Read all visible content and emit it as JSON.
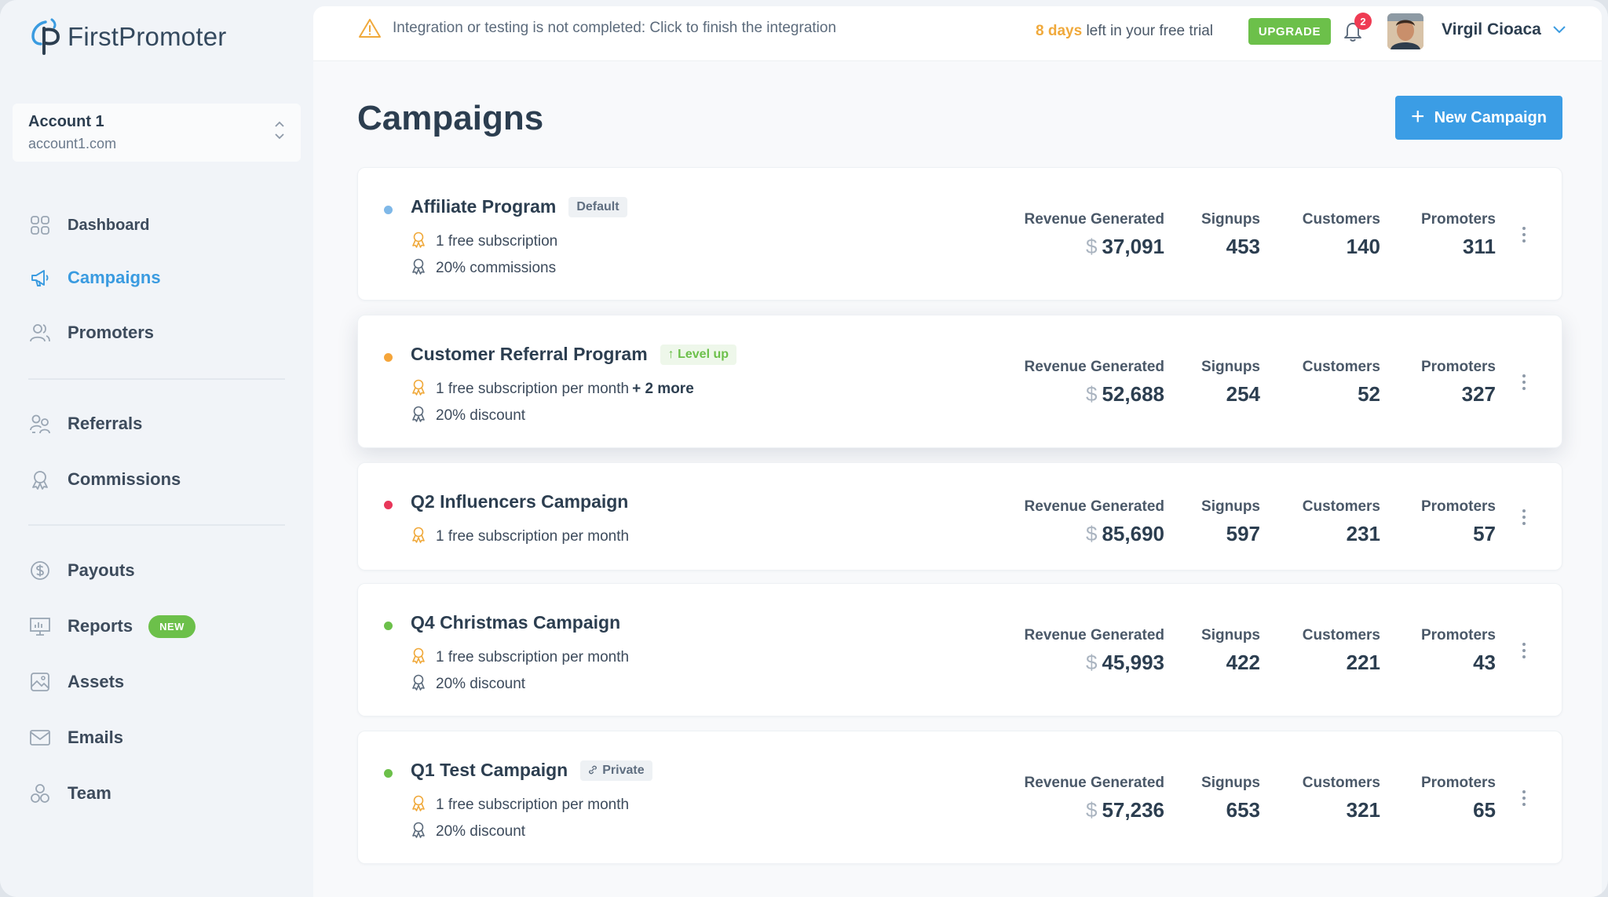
{
  "app": {
    "brand": "FirstPromoter"
  },
  "account": {
    "name": "Account 1",
    "domain": "account1.com"
  },
  "nav": {
    "dashboard": "Dashboard",
    "campaigns": "Campaigns",
    "promoters": "Promoters",
    "referrals": "Referrals",
    "commissions": "Commissions",
    "payouts": "Payouts",
    "reports": "Reports",
    "reports_badge": "NEW",
    "assets": "Assets",
    "emails": "Emails",
    "team": "Team"
  },
  "topbar": {
    "warning": "Integration or testing is not completed: Click to finish the integration",
    "trial_days": "8 days",
    "trial_rest": "left in your free trial",
    "upgrade": "UPGRADE",
    "notif_count": "2",
    "user_name": "Virgil Cioaca"
  },
  "page": {
    "title": "Campaigns",
    "new_button": "New Campaign"
  },
  "stat_labels": {
    "revenue": "Revenue Generated",
    "signups": "Signups",
    "customers": "Customers",
    "promoters": "Promoters"
  },
  "currency": "$",
  "campaigns": [
    {
      "name": "Affiliate Program",
      "tag": "Default",
      "status_color": "#7fb8e8",
      "reward1": "1 free subscription",
      "reward1_more": "",
      "reward2": "20% commissions",
      "revenue": "37,091",
      "signups": "453",
      "customers": "140",
      "promoters": "311"
    },
    {
      "name": "Customer Referral Program",
      "tag": "↑ Level up",
      "status_color": "#f5a53a",
      "reward1": "1 free subscription per month",
      "reward1_more": "+ 2 more",
      "reward2": "20% discount",
      "revenue": "52,688",
      "signups": "254",
      "customers": "52",
      "promoters": "327"
    },
    {
      "name": "Q2 Influencers Campaign",
      "tag": "",
      "status_color": "#e8375a",
      "reward1": "1 free subscription per month",
      "reward1_more": "",
      "reward2": "",
      "revenue": "85,690",
      "signups": "597",
      "customers": "231",
      "promoters": "57"
    },
    {
      "name": "Q4 Christmas Campaign",
      "tag": "",
      "status_color": "#6cc04a",
      "reward1": "1 free subscription per month",
      "reward1_more": "",
      "reward2": "20% discount",
      "revenue": "45,993",
      "signups": "422",
      "customers": "221",
      "promoters": "43"
    },
    {
      "name": "Q1 Test Campaign",
      "tag": "Private",
      "status_color": "#6cc04a",
      "reward1": "1 free subscription per month",
      "reward1_more": "",
      "reward2": "20% discount",
      "revenue": "57,236",
      "signups": "653",
      "customers": "321",
      "promoters": "65"
    }
  ]
}
